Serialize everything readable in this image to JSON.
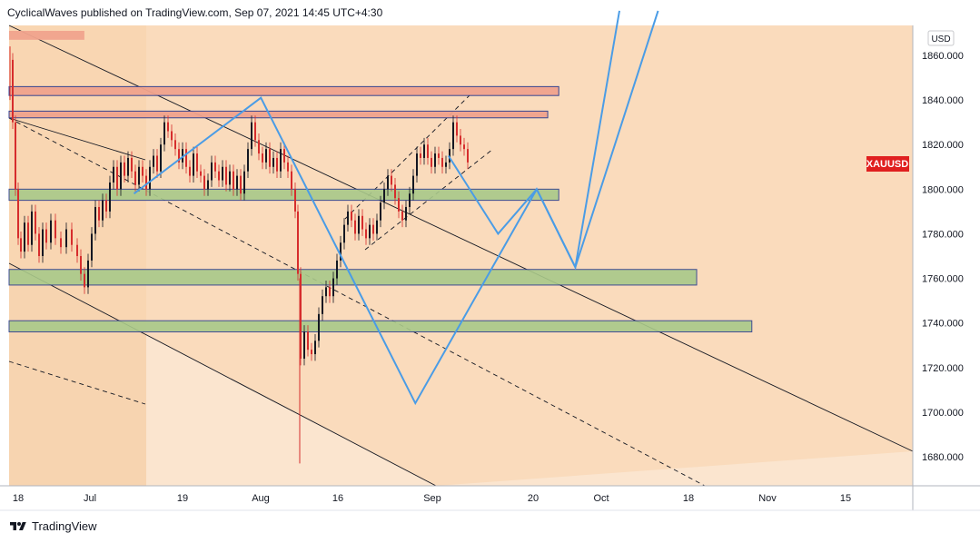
{
  "header": {
    "text": "CyclicalWaves published on TradingView.com, Sep 07, 2021 14:45 UTC+4:30"
  },
  "footer": {
    "brand": "TradingView",
    "logo_icon": "tradingview-logo-icon"
  },
  "chart_data": {
    "type": "candlestick",
    "symbol": "XAUUSD",
    "currency": "USD",
    "ylim": [
      1670,
      1875
    ],
    "yticks": [
      "1860.000",
      "1840.000",
      "1820.000",
      "1800.000",
      "1780.000",
      "1760.000",
      "1740.000",
      "1720.000",
      "1700.000",
      "1680.000"
    ],
    "xticks": [
      "18",
      "Jul",
      "19",
      "Aug",
      "16",
      "Sep",
      "20",
      "Oct",
      "18",
      "Nov",
      "15"
    ],
    "last_price_label": "XAUUSD",
    "colors": {
      "background": "#fbe5cf",
      "early_shade": "#f7d4b0",
      "channel_fill": "#f9d7b3",
      "red_zone": "#f0a38d",
      "green_zone": "#a9c98a",
      "zone_border": "#2b3d8f",
      "projection": "#4a9ce6",
      "up_candle": "#131722",
      "down_candle": "#d62d2d",
      "price_tag": "#e01f1f"
    },
    "resistance_zones": [
      {
        "type": "red",
        "from": "Jun 18",
        "to": "Jun 30",
        "low": 1867,
        "high": 1871
      },
      {
        "type": "red",
        "from": "Jun 18",
        "to": "Sep 24",
        "low": 1842,
        "high": 1846
      },
      {
        "type": "red",
        "from": "Jun 18",
        "to": "Sep 22",
        "low": 1832,
        "high": 1835
      }
    ],
    "support_zones": [
      {
        "type": "green",
        "from": "Jun 18",
        "to": "Sep 24",
        "low": 1795,
        "high": 1800
      },
      {
        "type": "green",
        "from": "Jun 18",
        "to": "Oct 19",
        "low": 1757,
        "high": 1764
      },
      {
        "type": "green",
        "from": "Jun 18",
        "to": "Oct 29",
        "low": 1736,
        "high": 1741
      }
    ],
    "projection_path": [
      {
        "date": "Jul 9",
        "price": 1798
      },
      {
        "date": "Aug 1",
        "price": 1841
      },
      {
        "date": "Aug 29",
        "price": 1704
      },
      {
        "date": "Sep 20",
        "price": 1800
      },
      {
        "date": "Sep 27",
        "price": 1765
      },
      {
        "date": "Oct 5",
        "price": 1880
      }
    ],
    "projection_path_2": [
      {
        "date": "Sep 4",
        "price": 1815
      },
      {
        "date": "Sep 13",
        "price": 1780
      },
      {
        "date": "Sep 20",
        "price": 1800
      },
      {
        "date": "Sep 27",
        "price": 1765
      },
      {
        "date": "Oct 12",
        "price": 1880
      }
    ]
  }
}
